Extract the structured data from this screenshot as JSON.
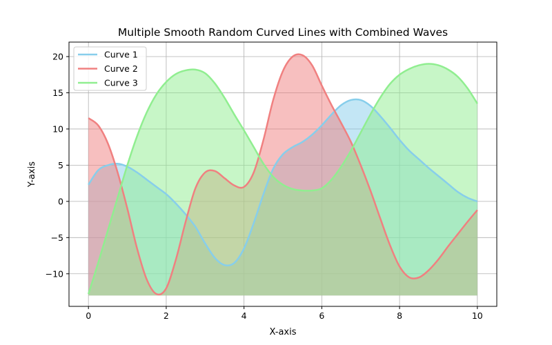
{
  "chart_data": {
    "type": "area",
    "title": "Multiple Smooth Random Curved Lines with Combined Waves",
    "xlabel": "X-axis",
    "ylabel": "Y-axis",
    "xlim": [
      -0.5,
      10.5
    ],
    "ylim": [
      -14.5,
      22
    ],
    "xticks": [
      0,
      2,
      4,
      6,
      8,
      10
    ],
    "yticks": [
      -10,
      -5,
      0,
      5,
      10,
      15,
      20
    ],
    "xtick_labels": [
      "0",
      "2",
      "4",
      "6",
      "8",
      "10"
    ],
    "ytick_labels": [
      "−10",
      "−5",
      "0",
      "5",
      "10",
      "15",
      "20"
    ],
    "grid": true,
    "legend_position": "top-left",
    "fill_baseline": -13,
    "x": [
      0,
      0.25,
      0.5,
      0.75,
      1,
      1.25,
      1.5,
      1.75,
      2,
      2.25,
      2.5,
      2.75,
      3,
      3.25,
      3.5,
      3.75,
      4,
      4.25,
      4.5,
      4.75,
      5,
      5.25,
      5.5,
      5.75,
      6,
      6.25,
      6.5,
      6.75,
      7,
      7.25,
      7.5,
      7.75,
      8,
      8.25,
      8.5,
      8.75,
      9,
      9.25,
      9.5,
      9.75,
      10
    ],
    "series": [
      {
        "name": "Curve 1",
        "color": "#87ceeb",
        "values": [
          2.3,
          4.3,
          5.0,
          5.2,
          4.8,
          4.0,
          3.0,
          2.0,
          1.0,
          -0.3,
          -1.8,
          -3.5,
          -5.8,
          -7.8,
          -8.8,
          -8.5,
          -6.5,
          -3.0,
          1.0,
          4.5,
          6.5,
          7.5,
          8.2,
          9.2,
          10.5,
          12.0,
          13.3,
          14.0,
          14.0,
          13.2,
          11.8,
          10.2,
          8.5,
          7.0,
          5.8,
          4.6,
          3.5,
          2.4,
          1.3,
          0.5,
          0.0
        ]
      },
      {
        "name": "Curve 2",
        "color": "#f08080",
        "values": [
          11.5,
          10.5,
          8.0,
          4.0,
          -1.0,
          -6.5,
          -10.8,
          -12.8,
          -12.0,
          -8.0,
          -2.8,
          1.8,
          4.0,
          4.2,
          3.2,
          2.2,
          2.0,
          4.0,
          8.5,
          14.0,
          18.0,
          20.0,
          20.2,
          18.8,
          16.0,
          13.3,
          10.8,
          8.2,
          5.0,
          1.5,
          -2.3,
          -6.0,
          -9.0,
          -10.5,
          -10.5,
          -9.5,
          -8.0,
          -6.2,
          -4.5,
          -2.8,
          -1.2
        ]
      },
      {
        "name": "Curve 3",
        "color": "#90ee90",
        "values": [
          -12.8,
          -8.5,
          -4.0,
          0.5,
          5.0,
          9.0,
          12.3,
          14.8,
          16.5,
          17.6,
          18.1,
          18.2,
          17.7,
          16.3,
          14.3,
          12.0,
          9.8,
          7.5,
          5.2,
          3.4,
          2.3,
          1.7,
          1.5,
          1.5,
          1.8,
          3.0,
          4.8,
          7.0,
          9.5,
          12.0,
          14.3,
          16.2,
          17.5,
          18.3,
          18.8,
          19.0,
          18.8,
          18.2,
          17.2,
          15.6,
          13.5
        ]
      }
    ]
  }
}
